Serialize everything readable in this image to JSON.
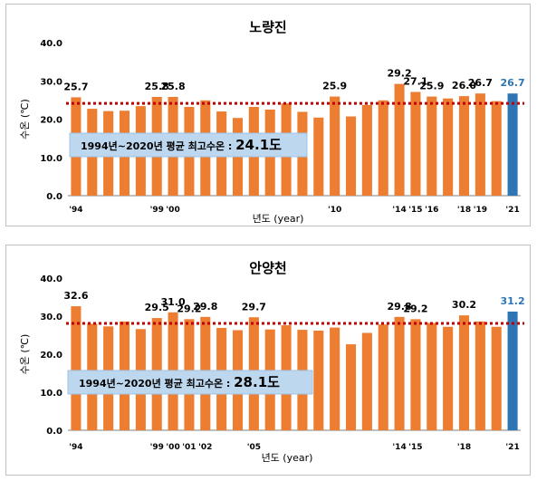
{
  "chart_data": [
    {
      "type": "bar",
      "title": "노량진",
      "ylabel": "수온 (℃)",
      "xlabel": "년도 (year)",
      "ylim": [
        0,
        40
      ],
      "yticks": [
        "0.0",
        "10.0",
        "20.0",
        "30.0",
        "40.0"
      ],
      "categories": [
        "1994",
        "1995",
        "1996",
        "1997",
        "1998",
        "1999",
        "2000",
        "2001",
        "2002",
        "2003",
        "2004",
        "2005",
        "2006",
        "2007",
        "2008",
        "2009",
        "2010",
        "2011",
        "2012",
        "2013",
        "2014",
        "2015",
        "2016",
        "2017",
        "2018",
        "2019",
        "2020",
        "2021"
      ],
      "values": [
        25.7,
        22.7,
        22.1,
        22.2,
        23.4,
        25.8,
        25.8,
        23.2,
        24.9,
        22.0,
        20.3,
        23.2,
        22.5,
        24.1,
        21.9,
        20.4,
        25.9,
        20.7,
        23.7,
        24.9,
        29.2,
        27.1,
        25.9,
        25.4,
        26.0,
        26.7,
        24.7,
        26.7
      ],
      "xtick_labels": [
        {
          "index": 0,
          "label": "'94"
        },
        {
          "index": 5,
          "label": "'99"
        },
        {
          "index": 6,
          "label": "'00"
        },
        {
          "index": 16,
          "label": "'10"
        },
        {
          "index": 20,
          "label": "'14"
        },
        {
          "index": 21,
          "label": "'15"
        },
        {
          "index": 22,
          "label": "'16"
        },
        {
          "index": 24,
          "label": "'18"
        },
        {
          "index": 25,
          "label": "'19"
        },
        {
          "index": 27,
          "label": "'21"
        }
      ],
      "data_labels": [
        {
          "index": 0,
          "label": "25.7"
        },
        {
          "index": 5,
          "label": "25.8"
        },
        {
          "index": 6,
          "label": "25.8"
        },
        {
          "index": 16,
          "label": "25.9"
        },
        {
          "index": 20,
          "label": "29.2"
        },
        {
          "index": 21,
          "label": "27.1"
        },
        {
          "index": 22,
          "label": "25.9"
        },
        {
          "index": 24,
          "label": "26.0"
        },
        {
          "index": 25,
          "label": "26.7"
        },
        {
          "index": 27,
          "label": "26.7"
        }
      ],
      "highlight_index": 27,
      "average": {
        "value": 24.1,
        "label": "1994년~2020년 평균 최고수온 : ",
        "value_label": "24.1도"
      },
      "colors": {
        "bar": "#ed7d31",
        "highlight": "#2e75b6",
        "average_line": "#c00000",
        "label_box": "#bdd7ee",
        "highlight_label": "#2e75b6"
      },
      "grid": false
    },
    {
      "type": "bar",
      "title": "안양천",
      "ylabel": "수온 (℃)",
      "xlabel": "년도 (year)",
      "ylim": [
        0,
        40
      ],
      "yticks": [
        "0.0",
        "10.0",
        "20.0",
        "30.0",
        "40.0"
      ],
      "categories": [
        "1994",
        "1995",
        "1996",
        "1997",
        "1998",
        "1999",
        "2000",
        "2001",
        "2002",
        "2003",
        "2004",
        "2005",
        "2006",
        "2007",
        "2008",
        "2009",
        "2010",
        "2011",
        "2012",
        "2013",
        "2014",
        "2015",
        "2016",
        "2017",
        "2018",
        "2019",
        "2020",
        "2021"
      ],
      "values": [
        32.6,
        28.0,
        27.3,
        28.6,
        26.6,
        29.5,
        31.0,
        29.2,
        29.8,
        26.9,
        26.3,
        29.7,
        26.5,
        27.6,
        26.4,
        26.2,
        27.0,
        22.6,
        25.6,
        27.8,
        29.8,
        29.2,
        28.2,
        27.2,
        30.2,
        28.6,
        27.2,
        31.2
      ],
      "xtick_labels": [
        {
          "index": 0,
          "label": "'94"
        },
        {
          "index": 5,
          "label": "'99"
        },
        {
          "index": 6,
          "label": "'00"
        },
        {
          "index": 7,
          "label": "'01"
        },
        {
          "index": 8,
          "label": "'02"
        },
        {
          "index": 11,
          "label": "'05"
        },
        {
          "index": 20,
          "label": "'14"
        },
        {
          "index": 21,
          "label": "'15"
        },
        {
          "index": 24,
          "label": "'18"
        },
        {
          "index": 27,
          "label": "'21"
        }
      ],
      "data_labels": [
        {
          "index": 0,
          "label": "32.6"
        },
        {
          "index": 5,
          "label": "29.5"
        },
        {
          "index": 6,
          "label": "31.0"
        },
        {
          "index": 7,
          "label": "29.2"
        },
        {
          "index": 8,
          "label": "29.8"
        },
        {
          "index": 11,
          "label": "29.7"
        },
        {
          "index": 20,
          "label": "29.8"
        },
        {
          "index": 21,
          "label": "29.2"
        },
        {
          "index": 24,
          "label": "30.2"
        },
        {
          "index": 27,
          "label": "31.2"
        }
      ],
      "highlight_index": 27,
      "average": {
        "value": 28.1,
        "label": "1994년~2020년 평균 최고수온 : ",
        "value_label": "28.1도"
      },
      "colors": {
        "bar": "#ed7d31",
        "highlight": "#2e75b6",
        "average_line": "#c00000",
        "label_box": "#bdd7ee",
        "highlight_label": "#2e75b6"
      },
      "grid": false
    }
  ]
}
